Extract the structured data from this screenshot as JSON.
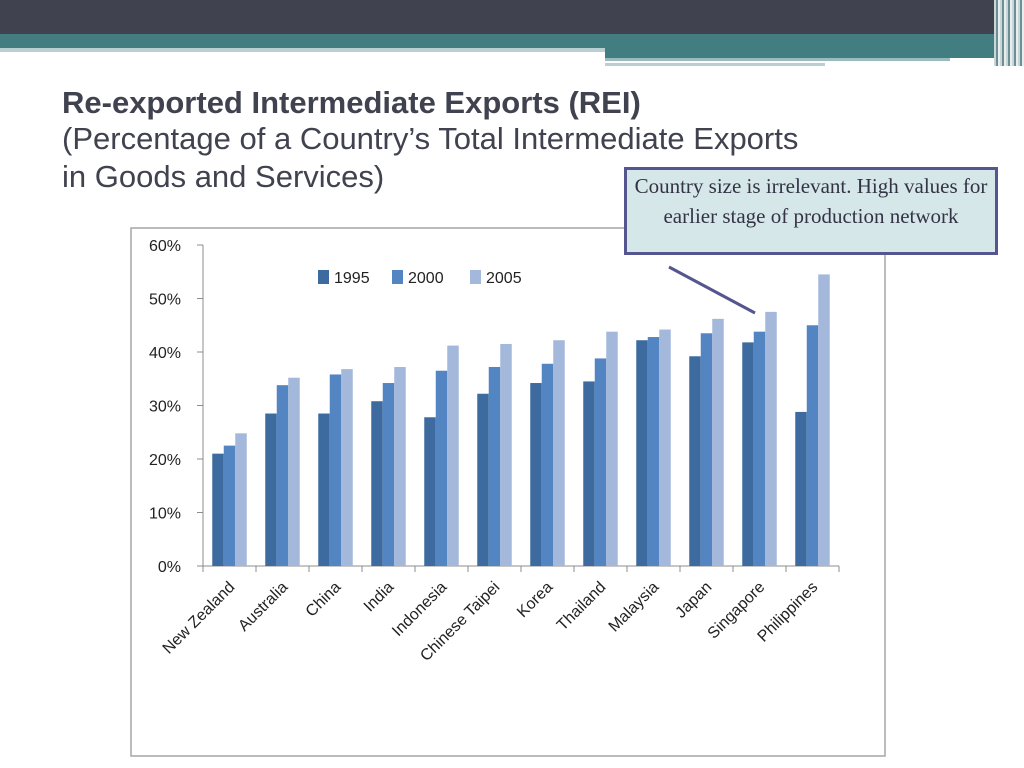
{
  "slide": {
    "title_line1": "Re-exported Intermediate Exports (REI)",
    "title_line2": "(Percentage of a Country’s Total Intermediate Exports",
    "title_line3": "in Goods and Services)",
    "callout_text": "Country size is irrelevant. High values for earlier stage of production network"
  },
  "colors": {
    "series": [
      "#3d6b9f",
      "#5485c3",
      "#a4b8dc"
    ],
    "title": "#40424f",
    "callout_border": "#55558f",
    "callout_bg": "#d6e7ea"
  },
  "chart_data": {
    "type": "bar",
    "categories": [
      "New Zealand",
      "Australia",
      "China",
      "India",
      "Indonesia",
      "Chinese Taipei",
      "Korea",
      "Thailand",
      "Malaysia",
      "Japan",
      "Singapore",
      "Philippines"
    ],
    "series": [
      {
        "name": "1995",
        "values": [
          21,
          28.5,
          28.5,
          30.8,
          27.8,
          32.2,
          34.2,
          34.5,
          42.2,
          39.2,
          41.8,
          28.8
        ]
      },
      {
        "name": "2000",
        "values": [
          22.5,
          33.8,
          35.8,
          34.2,
          36.5,
          37.2,
          37.8,
          38.8,
          42.8,
          43.5,
          43.8,
          45
        ]
      },
      {
        "name": "2005",
        "values": [
          24.8,
          35.2,
          36.8,
          37.2,
          41.2,
          41.5,
          42.2,
          43.8,
          44.2,
          46.2,
          47.5,
          54.5
        ]
      }
    ],
    "y_ticks": [
      "0%",
      "10%",
      "20%",
      "30%",
      "40%",
      "50%",
      "60%"
    ],
    "ylim": [
      0,
      60
    ],
    "legend_position": "top-center",
    "grid": false
  }
}
